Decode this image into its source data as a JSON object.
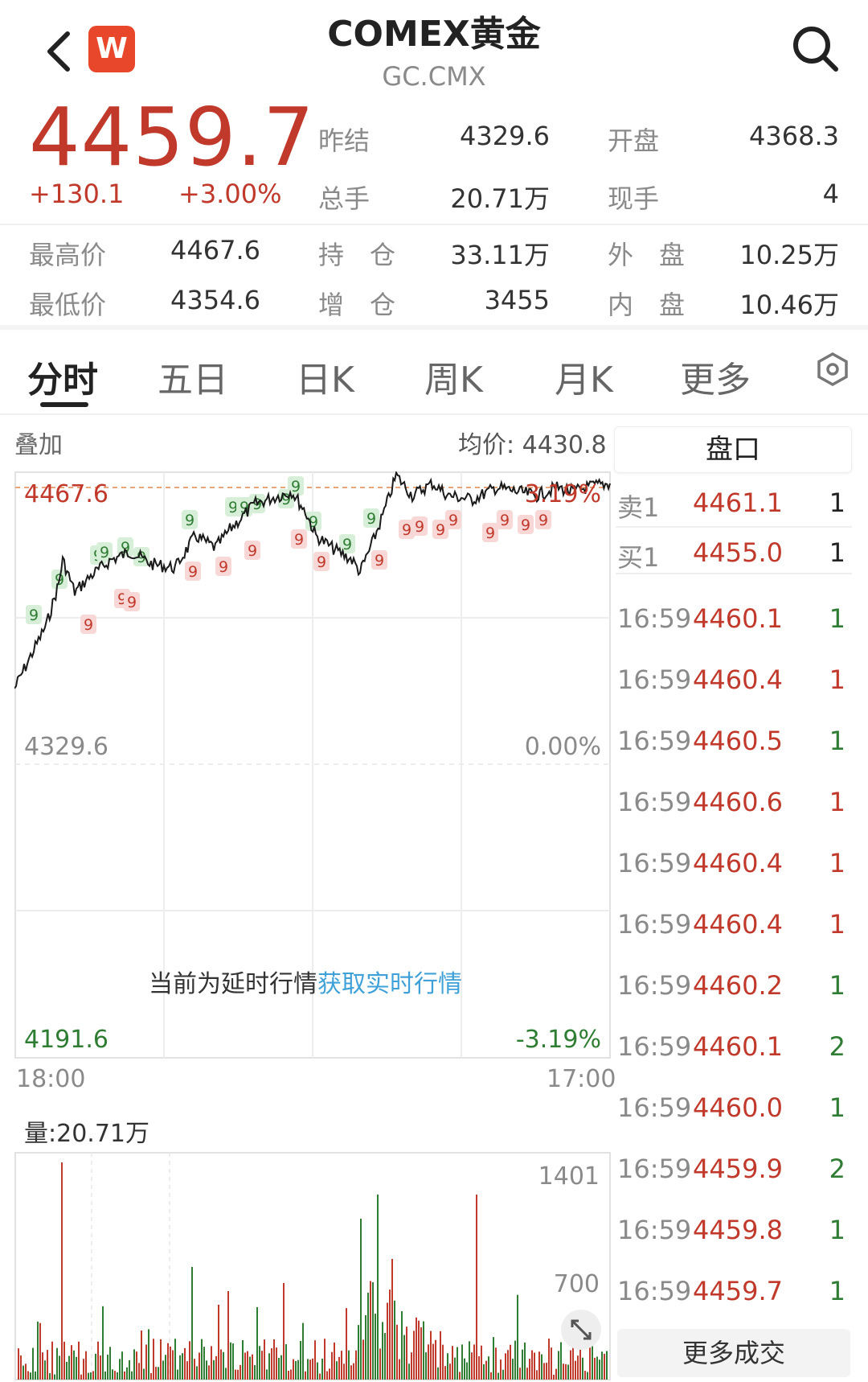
{
  "header": {
    "title": "COMEX黄金",
    "subtitle": "GC.CMX",
    "logo_text": "W",
    "back_icon": "chevron-left-icon",
    "search_icon": "search-icon"
  },
  "quote": {
    "price": "4459.7",
    "change": "+130.1",
    "change_pct": "+3.00%",
    "rows": [
      {
        "l1": "昨结",
        "v1": "4329.6",
        "l2": "开盘",
        "v2": "4368.3"
      },
      {
        "l1": "总手",
        "v1": "20.71万",
        "l2": "现手",
        "v2": "4"
      }
    ],
    "rows2": [
      {
        "l0": "最高价",
        "v0": "4467.6",
        "l1": "持　仓",
        "v1": "33.11万",
        "l2": "外　盘",
        "v2": "10.25万"
      },
      {
        "l0": "最低价",
        "v0": "4354.6",
        "l1": "增　仓",
        "v1": "3455",
        "l2": "内　盘",
        "v2": "10.46万"
      }
    ]
  },
  "tabs": [
    "分时",
    "五日",
    "日K",
    "周K",
    "月K",
    "更多"
  ],
  "tabs_settings_icon": "hexagon-settings-icon",
  "chart": {
    "overlay_label": "叠加",
    "avg_label": "均价: 4430.8",
    "y_top": "4467.6",
    "y_mid": "4329.6",
    "y_bottom": "4191.6",
    "pct_top": "3.19%",
    "pct_mid": "0.00%",
    "pct_bottom": "-3.19%",
    "delay_text": "当前为延时行情",
    "delay_link": "获取实时行情",
    "time_start": "18:00",
    "time_end": "17:00",
    "volume_label": "量:20.71万",
    "vol_max": "1401",
    "vol_mid": "700",
    "expand_icon": "expand-arrows-icon",
    "marker_text": "9"
  },
  "orderbook": {
    "title": "盘口",
    "rows": [
      {
        "label": "卖1",
        "price": "4461.1",
        "qty": "1"
      },
      {
        "label": "买1",
        "price": "4455.0",
        "qty": "1"
      }
    ]
  },
  "trades": [
    {
      "time": "16:59",
      "price": "4460.1",
      "qty": "1"
    },
    {
      "time": "16:59",
      "price": "4460.4",
      "qty": "1"
    },
    {
      "time": "16:59",
      "price": "4460.5",
      "qty": "1"
    },
    {
      "time": "16:59",
      "price": "4460.6",
      "qty": "1"
    },
    {
      "time": "16:59",
      "price": "4460.4",
      "qty": "1"
    },
    {
      "time": "16:59",
      "price": "4460.4",
      "qty": "1"
    },
    {
      "time": "16:59",
      "price": "4460.2",
      "qty": "1"
    },
    {
      "time": "16:59",
      "price": "4460.1",
      "qty": "2"
    },
    {
      "time": "16:59",
      "price": "4460.0",
      "qty": "1"
    },
    {
      "time": "16:59",
      "price": "4459.9",
      "qty": "2"
    },
    {
      "time": "16:59",
      "price": "4459.8",
      "qty": "1"
    },
    {
      "time": "16:59",
      "price": "4459.7",
      "qty": "1"
    }
  ],
  "more_trades": "更多成交",
  "colors": {
    "up": "#c0392b",
    "down": "#2e7d32",
    "link": "#3fa1d8"
  }
}
